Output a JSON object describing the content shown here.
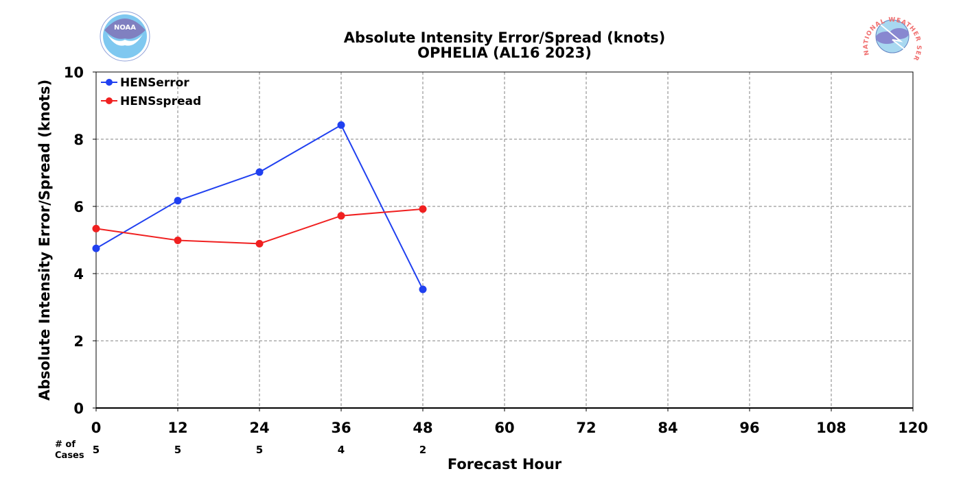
{
  "chart_data": {
    "type": "line",
    "title": "Absolute Intensity Error/Spread (knots)",
    "subtitle": "OPHELIA (AL16 2023)",
    "xlabel": "Forecast Hour",
    "ylabel": "Absolute Intensity Error/Spread (knots)",
    "xlim": [
      0,
      120
    ],
    "ylim": [
      0,
      10
    ],
    "x_ticks": [
      0,
      12,
      24,
      36,
      48,
      60,
      72,
      84,
      96,
      108,
      120
    ],
    "y_ticks": [
      0,
      2,
      4,
      6,
      8,
      10
    ],
    "grid": true,
    "legend_position": "top-left",
    "series": [
      {
        "name": "HENSerror",
        "color": "#2040f0",
        "x": [
          0,
          12,
          24,
          36,
          48
        ],
        "values": [
          4.75,
          6.17,
          7.02,
          8.42,
          3.53
        ]
      },
      {
        "name": "HENSspread",
        "color": "#f02020",
        "x": [
          0,
          12,
          24,
          36,
          48
        ],
        "values": [
          5.34,
          4.99,
          4.89,
          5.72,
          5.92
        ]
      }
    ],
    "cases": {
      "label_line1": "# of",
      "label_line2": "Cases",
      "x": [
        0,
        12,
        24,
        36,
        48
      ],
      "values": [
        "5",
        "5",
        "5",
        "4",
        "2"
      ]
    }
  },
  "logos": {
    "left": {
      "icon": "noaa-logo-icon",
      "text": "NOAA"
    },
    "right": {
      "icon": "nws-logo-icon",
      "text": "NATIONAL WEATHER SERVICE"
    }
  }
}
